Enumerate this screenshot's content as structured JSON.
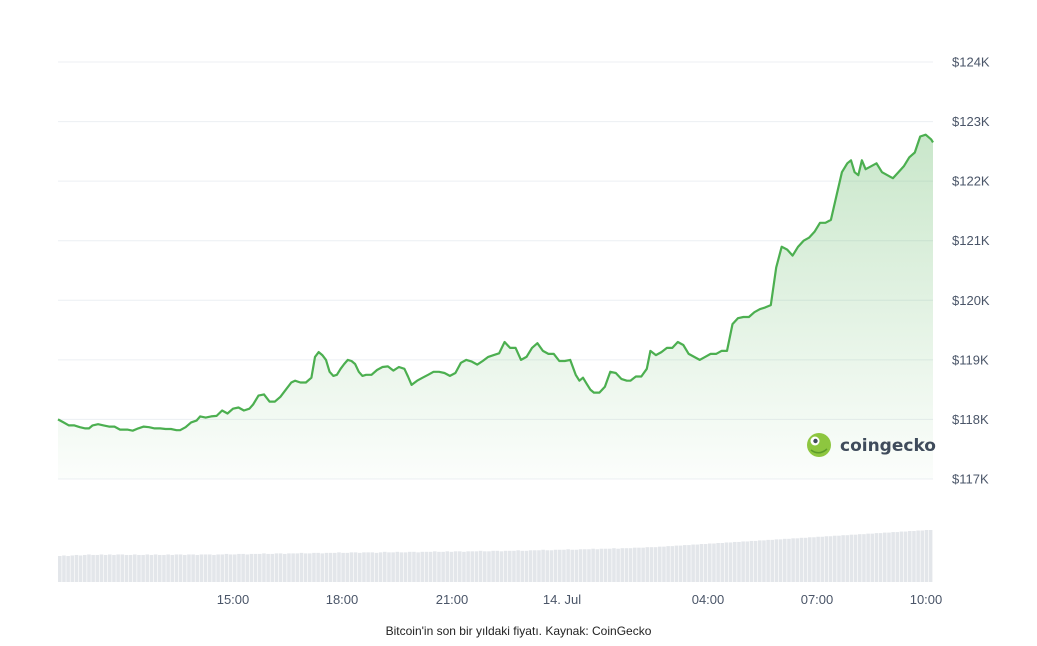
{
  "chart_data": {
    "type": "area",
    "x_tick_labels": [
      "15:00",
      "18:00",
      "21:00",
      "14. Jul",
      "04:00",
      "07:00",
      "10:00"
    ],
    "y_tick_labels": [
      "$117K",
      "$118K",
      "$119K",
      "$120K",
      "$121K",
      "$122K",
      "$123K",
      "$124K"
    ],
    "y_ticks": [
      117000,
      118000,
      119000,
      120000,
      121000,
      122000,
      123000,
      124000
    ],
    "ylim": [
      117000,
      124000
    ],
    "grid": true,
    "legend": "none",
    "series": [
      {
        "color": "#4caf50",
        "points": [
          [
            0,
            118000
          ],
          [
            3,
            117950
          ],
          [
            6,
            117900
          ],
          [
            9,
            117900
          ],
          [
            12,
            117870
          ],
          [
            15,
            117850
          ],
          [
            17,
            117850
          ],
          [
            19,
            117900
          ],
          [
            22,
            117920
          ],
          [
            25,
            117900
          ],
          [
            28,
            117880
          ],
          [
            31,
            117880
          ],
          [
            34,
            117830
          ],
          [
            38,
            117830
          ],
          [
            41,
            117810
          ],
          [
            44,
            117850
          ],
          [
            47,
            117880
          ],
          [
            50,
            117870
          ],
          [
            53,
            117850
          ],
          [
            56,
            117850
          ],
          [
            59,
            117840
          ],
          [
            62,
            117840
          ],
          [
            65,
            117820
          ],
          [
            67,
            117820
          ],
          [
            70,
            117870
          ],
          [
            73,
            117950
          ],
          [
            76,
            117980
          ],
          [
            78,
            118050
          ],
          [
            81,
            118030
          ],
          [
            84,
            118050
          ],
          [
            87,
            118060
          ],
          [
            90,
            118150
          ],
          [
            93,
            118100
          ],
          [
            96,
            118180
          ],
          [
            99,
            118200
          ],
          [
            102,
            118150
          ],
          [
            105,
            118180
          ],
          [
            107,
            118250
          ],
          [
            110,
            118400
          ],
          [
            113,
            118420
          ],
          [
            116,
            118300
          ],
          [
            119,
            118300
          ],
          [
            122,
            118380
          ],
          [
            125,
            118500
          ],
          [
            128,
            118620
          ],
          [
            130,
            118650
          ],
          [
            133,
            118620
          ],
          [
            136,
            118620
          ],
          [
            139,
            118700
          ],
          [
            141,
            119050
          ],
          [
            143,
            119130
          ],
          [
            145,
            119080
          ],
          [
            147,
            119000
          ],
          [
            149,
            118800
          ],
          [
            151,
            118730
          ],
          [
            153,
            118750
          ],
          [
            155,
            118850
          ],
          [
            157,
            118930
          ],
          [
            159,
            119000
          ],
          [
            161,
            118980
          ],
          [
            163,
            118930
          ],
          [
            165,
            118800
          ],
          [
            167,
            118730
          ],
          [
            169,
            118750
          ],
          [
            172,
            118750
          ],
          [
            175,
            118830
          ],
          [
            178,
            118880
          ],
          [
            181,
            118890
          ],
          [
            184,
            118820
          ],
          [
            187,
            118880
          ],
          [
            190,
            118850
          ],
          [
            192,
            118720
          ],
          [
            194,
            118580
          ],
          [
            197,
            118650
          ],
          [
            200,
            118700
          ],
          [
            203,
            118750
          ],
          [
            206,
            118800
          ],
          [
            209,
            118800
          ],
          [
            212,
            118780
          ],
          [
            215,
            118730
          ],
          [
            218,
            118780
          ],
          [
            221,
            118950
          ],
          [
            224,
            119000
          ],
          [
            227,
            118970
          ],
          [
            230,
            118920
          ],
          [
            233,
            118980
          ],
          [
            236,
            119050
          ],
          [
            239,
            119080
          ],
          [
            242,
            119110
          ],
          [
            245,
            119300
          ],
          [
            248,
            119200
          ],
          [
            251,
            119200
          ],
          [
            254,
            119000
          ],
          [
            257,
            119050
          ],
          [
            260,
            119200
          ],
          [
            263,
            119280
          ],
          [
            266,
            119150
          ],
          [
            269,
            119100
          ],
          [
            272,
            119100
          ],
          [
            275,
            118980
          ],
          [
            278,
            118980
          ],
          [
            281,
            119000
          ],
          [
            284,
            118750
          ],
          [
            286,
            118650
          ],
          [
            288,
            118700
          ],
          [
            290,
            118600
          ],
          [
            292,
            118500
          ],
          [
            294,
            118450
          ],
          [
            297,
            118450
          ],
          [
            300,
            118550
          ],
          [
            303,
            118800
          ],
          [
            306,
            118780
          ],
          [
            309,
            118680
          ],
          [
            312,
            118650
          ],
          [
            314,
            118650
          ],
          [
            317,
            118720
          ],
          [
            320,
            118720
          ],
          [
            323,
            118850
          ],
          [
            325,
            119150
          ],
          [
            328,
            119080
          ],
          [
            331,
            119130
          ],
          [
            334,
            119200
          ],
          [
            337,
            119200
          ],
          [
            340,
            119300
          ],
          [
            343,
            119250
          ],
          [
            346,
            119100
          ],
          [
            349,
            119050
          ],
          [
            352,
            119000
          ],
          [
            355,
            119050
          ],
          [
            358,
            119100
          ],
          [
            361,
            119100
          ],
          [
            364,
            119150
          ],
          [
            367,
            119150
          ],
          [
            370,
            119600
          ],
          [
            373,
            119700
          ],
          [
            376,
            119720
          ],
          [
            379,
            119720
          ],
          [
            382,
            119800
          ],
          [
            385,
            119850
          ],
          [
            388,
            119880
          ],
          [
            391,
            119920
          ],
          [
            394,
            120550
          ],
          [
            397,
            120900
          ],
          [
            400,
            120850
          ],
          [
            403,
            120750
          ],
          [
            406,
            120900
          ],
          [
            409,
            121000
          ],
          [
            412,
            121050
          ],
          [
            415,
            121150
          ],
          [
            418,
            121300
          ],
          [
            421,
            121300
          ],
          [
            424,
            121350
          ],
          [
            427,
            121750
          ],
          [
            430,
            122150
          ],
          [
            433,
            122300
          ],
          [
            435,
            122350
          ],
          [
            437,
            122150
          ],
          [
            439,
            122100
          ],
          [
            441,
            122350
          ],
          [
            443,
            122200
          ],
          [
            446,
            122250
          ],
          [
            449,
            122300
          ],
          [
            452,
            122150
          ],
          [
            455,
            122100
          ],
          [
            458,
            122050
          ],
          [
            461,
            122150
          ],
          [
            464,
            122250
          ],
          [
            467,
            122400
          ],
          [
            470,
            122480
          ],
          [
            473,
            122750
          ],
          [
            476,
            122780
          ],
          [
            479,
            122700
          ],
          [
            480,
            122650
          ]
        ]
      }
    ],
    "volume_series": [
      0.5,
      0.51,
      0.5,
      0.51,
      0.52,
      0.51,
      0.52,
      0.53,
      0.52,
      0.52,
      0.53,
      0.52,
      0.53,
      0.52,
      0.53,
      0.53,
      0.52,
      0.52,
      0.53,
      0.52,
      0.52,
      0.53,
      0.52,
      0.53,
      0.52,
      0.52,
      0.53,
      0.52,
      0.53,
      0.53,
      0.52,
      0.53,
      0.53,
      0.52,
      0.53,
      0.53,
      0.53,
      0.52,
      0.53,
      0.53,
      0.54,
      0.53,
      0.53,
      0.54,
      0.54,
      0.53,
      0.54,
      0.54,
      0.54,
      0.55,
      0.54,
      0.54,
      0.55,
      0.55,
      0.54,
      0.55,
      0.55,
      0.55,
      0.56,
      0.55,
      0.55,
      0.56,
      0.56,
      0.55,
      0.56,
      0.56,
      0.56,
      0.57,
      0.56,
      0.56,
      0.57,
      0.57,
      0.56,
      0.57,
      0.57,
      0.57,
      0.56,
      0.57,
      0.58,
      0.57,
      0.57,
      0.58,
      0.57,
      0.57,
      0.58,
      0.58,
      0.57,
      0.58,
      0.58,
      0.58,
      0.59,
      0.58,
      0.58,
      0.59,
      0.58,
      0.59,
      0.59,
      0.58,
      0.59,
      0.59,
      0.59,
      0.6,
      0.59,
      0.59,
      0.6,
      0.6,
      0.59,
      0.6,
      0.6,
      0.6,
      0.61,
      0.6,
      0.6,
      0.61,
      0.61,
      0.61,
      0.62,
      0.61,
      0.61,
      0.62,
      0.62,
      0.62,
      0.63,
      0.62,
      0.62,
      0.63,
      0.63,
      0.63,
      0.64,
      0.63,
      0.64,
      0.64,
      0.64,
      0.65,
      0.64,
      0.65,
      0.65,
      0.65,
      0.66,
      0.66,
      0.66,
      0.67,
      0.67,
      0.67,
      0.68,
      0.68,
      0.69,
      0.69,
      0.7,
      0.7,
      0.71,
      0.71,
      0.72,
      0.72,
      0.73,
      0.73,
      0.74,
      0.74,
      0.75,
      0.75,
      0.76,
      0.76,
      0.77,
      0.77,
      0.78,
      0.78,
      0.79,
      0.79,
      0.8,
      0.8,
      0.81,
      0.81,
      0.82,
      0.82,
      0.83,
      0.83,
      0.84,
      0.84,
      0.85,
      0.85,
      0.86,
      0.86,
      0.87,
      0.87,
      0.88,
      0.88,
      0.89,
      0.89,
      0.9,
      0.9,
      0.91,
      0.91,
      0.92,
      0.92,
      0.93,
      0.93,
      0.94,
      0.94,
      0.95,
      0.95,
      0.96,
      0.96,
      0.97,
      0.97,
      0.98,
      0.98,
      0.99,
      0.99,
      1.0,
      1.0
    ]
  },
  "brand": {
    "name": "coingecko",
    "logo_color": "#8dc63f",
    "logo_eye_color": "#ffffff"
  },
  "caption": "Bitcoin'in son bir yıldaki fiyatı. Kaynak: CoinGecko"
}
